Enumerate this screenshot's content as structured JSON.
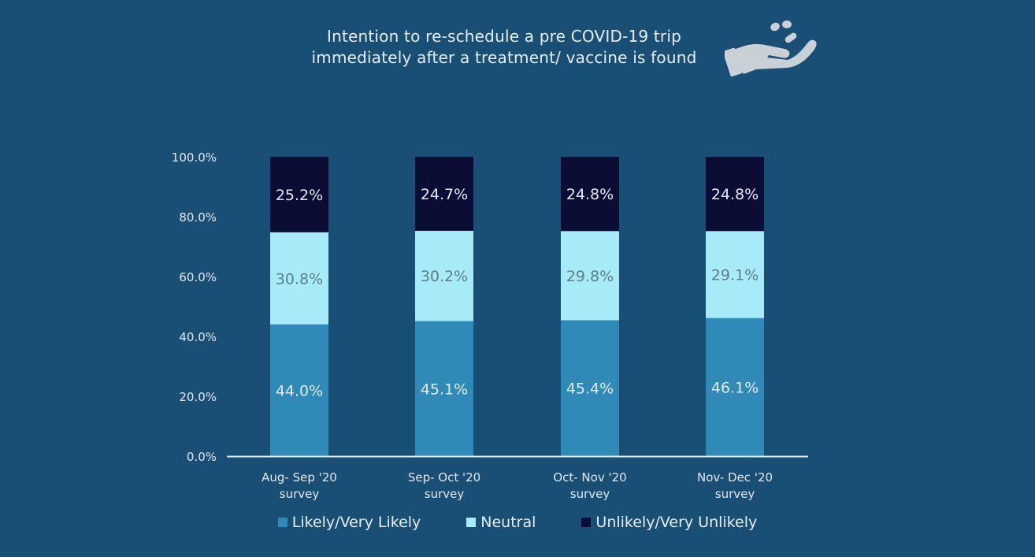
{
  "header": {
    "title_line1": "Intention to re-schedule  a pre COVID-19 trip",
    "title_line2": "immediately after a treatment/ vaccine is found",
    "icon": "hand-holding-pills-icon"
  },
  "colors": {
    "background": "#1a4f75",
    "likely": "#2f8ab8",
    "neutral": "#a6ebf7",
    "unlikely": "#0b0d35",
    "axis_text": "#dfe8ef"
  },
  "chart_data": {
    "type": "bar",
    "stacked": true,
    "categories": [
      [
        "Aug- Sep '20",
        "survey"
      ],
      [
        "Sep- Oct '20",
        "survey"
      ],
      [
        "Oct- Nov '20",
        "survey"
      ],
      [
        "Nov- Dec '20",
        "survey"
      ]
    ],
    "series": [
      {
        "name": "Likely/Very Likely",
        "color": "#2f8ab8",
        "values": [
          44.0,
          45.1,
          45.4,
          46.1
        ],
        "labels": [
          "44.0%",
          "45.1%",
          "45.4%",
          "46.1%"
        ]
      },
      {
        "name": "Neutral",
        "color": "#a6ebf7",
        "values": [
          30.8,
          30.2,
          29.8,
          29.1
        ],
        "labels": [
          "30.8%",
          "30.2%",
          "29.8%",
          "29.1%"
        ]
      },
      {
        "name": "Unlikely/Very Unlikely",
        "color": "#0b0d35",
        "values": [
          25.2,
          24.7,
          24.8,
          24.8
        ],
        "labels": [
          "25.2%",
          "24.7%",
          "24.8%",
          "24.8%"
        ]
      }
    ],
    "yticks": [
      "0.0%",
      "20.0%",
      "40.0%",
      "60.0%",
      "80.0%",
      "100.0%"
    ],
    "ylim": [
      0,
      100
    ],
    "grid": false,
    "legend_position": "bottom"
  }
}
